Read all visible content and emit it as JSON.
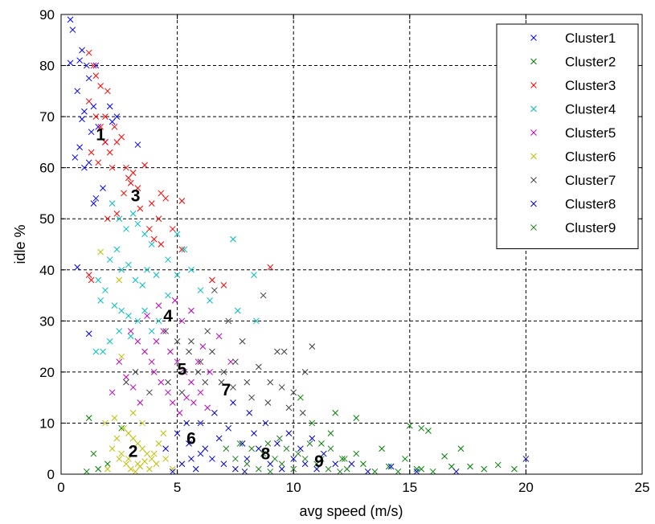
{
  "chart_data": {
    "type": "scatter",
    "title": "",
    "xlabel": "avg speed (m/s)",
    "ylabel": "idle %",
    "xlim": [
      0,
      25
    ],
    "ylim": [
      0,
      90
    ],
    "xticks": [
      0,
      5,
      10,
      15,
      20,
      25
    ],
    "yticks": [
      0,
      10,
      20,
      30,
      40,
      50,
      60,
      70,
      80,
      90
    ],
    "grid": true,
    "legend_position": "top-right",
    "marker": "x",
    "series": [
      {
        "name": "Cluster1",
        "color": "#0000FF",
        "points": [
          [
            0.4,
            89
          ],
          [
            0.5,
            87
          ],
          [
            0.4,
            80.5
          ],
          [
            0.8,
            81
          ],
          [
            0.9,
            83
          ],
          [
            1.1,
            80
          ],
          [
            1.2,
            77.5
          ],
          [
            1.0,
            71
          ],
          [
            0.7,
            75
          ],
          [
            0.9,
            69.5
          ],
          [
            1.4,
            72
          ],
          [
            1.3,
            67
          ],
          [
            1.6,
            68
          ],
          [
            0.8,
            64
          ],
          [
            0.6,
            62
          ],
          [
            1.0,
            60
          ],
          [
            1.2,
            61
          ],
          [
            2.1,
            72
          ],
          [
            2.4,
            70
          ],
          [
            3.3,
            64.5
          ],
          [
            1.5,
            54
          ],
          [
            1.4,
            53
          ],
          [
            1.8,
            56
          ],
          [
            0.7,
            40.5
          ],
          [
            1.2,
            27.5
          ],
          [
            1.5,
            80
          ],
          [
            1.9,
            65
          ],
          [
            2.2,
            69
          ]
        ]
      },
      {
        "name": "Cluster2",
        "color": "#008000",
        "points": [
          [
            15.0,
            9.5
          ],
          [
            15.5,
            9
          ],
          [
            15.8,
            8.5
          ],
          [
            16.5,
            3.5
          ],
          [
            17.2,
            5
          ],
          [
            17.6,
            1.5
          ],
          [
            18.2,
            1
          ],
          [
            19.5,
            1
          ],
          [
            14.8,
            3
          ],
          [
            14.1,
            1.5
          ],
          [
            15.3,
            1
          ],
          [
            16.0,
            0.5
          ],
          [
            13.8,
            5
          ],
          [
            12.7,
            4
          ],
          [
            12.1,
            3
          ],
          [
            11.6,
            8
          ],
          [
            10.3,
            15
          ],
          [
            11.2,
            6
          ],
          [
            13.0,
            2
          ],
          [
            12.3,
            1
          ],
          [
            13.5,
            0.5
          ],
          [
            16.8,
            1.5
          ],
          [
            18.8,
            1.8
          ],
          [
            15.5,
            1
          ],
          [
            14.5,
            0.5
          ],
          [
            1.2,
            11
          ],
          [
            1.4,
            4
          ],
          [
            2.0,
            2
          ],
          [
            2.6,
            9
          ],
          [
            1.6,
            1
          ],
          [
            1.1,
            0.5
          ],
          [
            11.8,
            12
          ],
          [
            12.7,
            11
          ],
          [
            10.8,
            10
          ]
        ]
      },
      {
        "name": "Cluster3",
        "color": "#FF0000",
        "points": [
          [
            1.2,
            82.5
          ],
          [
            1.4,
            80
          ],
          [
            1.5,
            78
          ],
          [
            1.2,
            73
          ],
          [
            1.5,
            70
          ],
          [
            1.7,
            68
          ],
          [
            1.9,
            65
          ],
          [
            2.1,
            63
          ],
          [
            1.3,
            63
          ],
          [
            1.6,
            61
          ],
          [
            2.2,
            60
          ],
          [
            2.4,
            65
          ],
          [
            2.6,
            66
          ],
          [
            2.0,
            75
          ],
          [
            1.7,
            76
          ],
          [
            1.9,
            70
          ],
          [
            2.3,
            68
          ],
          [
            2.8,
            60
          ],
          [
            2.9,
            58
          ],
          [
            3.1,
            59
          ],
          [
            3.3,
            56
          ],
          [
            3.6,
            60.5
          ],
          [
            3.4,
            52
          ],
          [
            3.9,
            53
          ],
          [
            4.3,
            55
          ],
          [
            4.5,
            54
          ],
          [
            5.2,
            53.5
          ],
          [
            3.8,
            48
          ],
          [
            4.0,
            46
          ],
          [
            4.3,
            45
          ],
          [
            4.2,
            50
          ],
          [
            4.8,
            48
          ],
          [
            5.2,
            44
          ],
          [
            1.2,
            39
          ],
          [
            1.3,
            38
          ],
          [
            2.0,
            50
          ],
          [
            2.4,
            51
          ],
          [
            6.5,
            38
          ],
          [
            7.0,
            37
          ],
          [
            9.0,
            40.5
          ],
          [
            2.7,
            55
          ],
          [
            3.0,
            57
          ]
        ]
      },
      {
        "name": "Cluster4",
        "color": "#00BFBF",
        "points": [
          [
            2.2,
            53
          ],
          [
            2.5,
            50
          ],
          [
            2.8,
            48
          ],
          [
            3.1,
            51
          ],
          [
            3.3,
            49
          ],
          [
            3.6,
            47
          ],
          [
            3.9,
            45
          ],
          [
            2.4,
            44
          ],
          [
            2.1,
            42
          ],
          [
            2.6,
            40
          ],
          [
            2.9,
            41
          ],
          [
            3.2,
            38
          ],
          [
            3.5,
            37
          ],
          [
            3.7,
            40
          ],
          [
            4.1,
            39
          ],
          [
            1.6,
            38
          ],
          [
            1.9,
            36
          ],
          [
            1.7,
            34
          ],
          [
            2.3,
            33
          ],
          [
            2.6,
            32
          ],
          [
            2.9,
            31
          ],
          [
            3.3,
            30
          ],
          [
            3.6,
            32
          ],
          [
            3.9,
            28
          ],
          [
            4.2,
            30
          ],
          [
            4.6,
            35
          ],
          [
            5.0,
            39
          ],
          [
            5.3,
            44
          ],
          [
            5.6,
            40
          ],
          [
            6.0,
            36
          ],
          [
            1.5,
            24
          ],
          [
            1.8,
            24
          ],
          [
            2.1,
            26
          ],
          [
            7.4,
            46
          ],
          [
            8.3,
            39
          ],
          [
            8.4,
            30
          ],
          [
            7.6,
            32
          ],
          [
            6.4,
            34
          ],
          [
            4.6,
            42
          ],
          [
            5.0,
            47
          ],
          [
            3.0,
            27
          ],
          [
            2.5,
            28
          ]
        ]
      },
      {
        "name": "Cluster5",
        "color": "#BF00BF",
        "points": [
          [
            3.0,
            28
          ],
          [
            3.3,
            26
          ],
          [
            3.6,
            24
          ],
          [
            3.9,
            22
          ],
          [
            4.1,
            26
          ],
          [
            4.4,
            28
          ],
          [
            4.7,
            24
          ],
          [
            5.0,
            22
          ],
          [
            5.3,
            20
          ],
          [
            5.6,
            18
          ],
          [
            5.9,
            22
          ],
          [
            6.1,
            25
          ],
          [
            6.4,
            20
          ],
          [
            4.0,
            20
          ],
          [
            4.3,
            18
          ],
          [
            4.6,
            16
          ],
          [
            4.8,
            14
          ],
          [
            5.1,
            12
          ],
          [
            5.4,
            15
          ],
          [
            5.7,
            14
          ],
          [
            6.0,
            16
          ],
          [
            6.3,
            13
          ],
          [
            2.5,
            22
          ],
          [
            2.8,
            19
          ],
          [
            3.1,
            17
          ],
          [
            3.4,
            14
          ],
          [
            2.2,
            16
          ],
          [
            5.2,
            30
          ],
          [
            5.6,
            32
          ],
          [
            4.9,
            34
          ],
          [
            6.8,
            27
          ],
          [
            7.3,
            22
          ],
          [
            3.7,
            31
          ],
          [
            4.2,
            33
          ]
        ]
      },
      {
        "name": "Cluster6",
        "color": "#BFBF00",
        "points": [
          [
            1.7,
            43.5
          ],
          [
            2.5,
            38
          ],
          [
            2.6,
            23
          ],
          [
            2.7,
            9
          ],
          [
            2.9,
            8
          ],
          [
            3.1,
            7
          ],
          [
            3.3,
            6
          ],
          [
            3.5,
            5
          ],
          [
            3.7,
            4
          ],
          [
            3.9,
            3
          ],
          [
            4.1,
            2
          ],
          [
            2.5,
            3
          ],
          [
            2.8,
            2
          ],
          [
            3.0,
            1
          ],
          [
            3.2,
            0.5
          ],
          [
            3.4,
            1.5
          ],
          [
            3.6,
            2.5
          ],
          [
            3.8,
            1
          ],
          [
            4.0,
            4
          ],
          [
            4.2,
            6
          ],
          [
            4.4,
            8
          ],
          [
            2.2,
            5
          ],
          [
            2.4,
            7
          ],
          [
            2.6,
            4
          ],
          [
            2.9,
            3
          ],
          [
            3.3,
            2
          ],
          [
            4.5,
            3
          ],
          [
            1.9,
            10
          ],
          [
            2.3,
            11
          ],
          [
            3.1,
            12
          ],
          [
            3.5,
            10
          ],
          [
            4.8,
            1
          ],
          [
            2.0,
            1
          ]
        ]
      },
      {
        "name": "Cluster7",
        "color": "#404040",
        "points": [
          [
            4.5,
            28
          ],
          [
            5.0,
            26
          ],
          [
            5.5,
            24
          ],
          [
            6.0,
            22
          ],
          [
            6.5,
            24
          ],
          [
            7.0,
            20
          ],
          [
            7.5,
            22
          ],
          [
            8.0,
            18
          ],
          [
            8.5,
            21
          ],
          [
            9.0,
            18
          ],
          [
            9.5,
            17
          ],
          [
            10.0,
            16
          ],
          [
            10.5,
            20
          ],
          [
            10.8,
            25
          ],
          [
            8.7,
            35
          ],
          [
            9.3,
            24
          ],
          [
            9.6,
            24
          ],
          [
            7.8,
            26
          ],
          [
            7.2,
            30
          ],
          [
            6.6,
            36
          ],
          [
            6.3,
            28
          ],
          [
            5.6,
            26
          ],
          [
            5.9,
            20
          ],
          [
            6.9,
            18
          ],
          [
            7.4,
            17
          ],
          [
            8.2,
            15
          ],
          [
            8.9,
            14
          ],
          [
            9.8,
            13
          ],
          [
            10.4,
            12
          ],
          [
            2.8,
            18
          ],
          [
            3.2,
            20
          ],
          [
            3.8,
            16
          ],
          [
            4.6,
            18
          ],
          [
            5.2,
            16
          ],
          [
            6.2,
            18
          ]
        ]
      },
      {
        "name": "Cluster8",
        "color": "#0000CC",
        "points": [
          [
            5.0,
            8
          ],
          [
            5.5,
            6
          ],
          [
            6.0,
            4
          ],
          [
            6.5,
            3
          ],
          [
            7.0,
            2
          ],
          [
            7.5,
            1
          ],
          [
            8.0,
            3
          ],
          [
            8.5,
            5
          ],
          [
            9.0,
            2
          ],
          [
            9.5,
            1
          ],
          [
            10.0,
            3
          ],
          [
            10.5,
            2
          ],
          [
            11.0,
            1
          ],
          [
            4.5,
            5
          ],
          [
            5.2,
            2
          ],
          [
            5.8,
            1
          ],
          [
            6.2,
            5
          ],
          [
            6.8,
            7
          ],
          [
            7.2,
            9
          ],
          [
            7.8,
            6
          ],
          [
            8.3,
            8
          ],
          [
            8.8,
            10
          ],
          [
            9.3,
            6
          ],
          [
            9.8,
            8
          ],
          [
            10.3,
            5
          ],
          [
            10.8,
            7
          ],
          [
            11.3,
            4
          ],
          [
            11.8,
            2
          ],
          [
            6.0,
            10
          ],
          [
            6.6,
            12
          ],
          [
            7.4,
            14
          ],
          [
            8.1,
            12
          ],
          [
            5.4,
            10
          ],
          [
            12.5,
            2
          ],
          [
            13.2,
            0.5
          ],
          [
            14.2,
            1.5
          ],
          [
            15.3,
            0.5
          ],
          [
            17.0,
            0.5
          ],
          [
            20.0,
            3
          ],
          [
            4.8,
            0.5
          ],
          [
            5.6,
            3
          ],
          [
            7.9,
            0.5
          ]
        ]
      },
      {
        "name": "Cluster9",
        "color": "#208020",
        "points": [
          [
            7.5,
            3
          ],
          [
            8.0,
            2
          ],
          [
            8.5,
            1
          ],
          [
            9.0,
            0.5
          ],
          [
            9.5,
            2
          ],
          [
            10.0,
            1
          ],
          [
            10.5,
            3
          ],
          [
            11.0,
            2
          ],
          [
            11.5,
            1
          ],
          [
            12.0,
            0.5
          ],
          [
            8.2,
            5
          ],
          [
            8.7,
            4
          ],
          [
            9.2,
            3
          ],
          [
            9.7,
            5
          ],
          [
            10.2,
            4
          ],
          [
            10.7,
            6
          ],
          [
            11.2,
            3
          ],
          [
            11.6,
            5
          ],
          [
            12.2,
            3
          ],
          [
            8.9,
            6
          ],
          [
            9.4,
            7
          ],
          [
            7.1,
            5
          ],
          [
            7.7,
            6
          ]
        ]
      }
    ],
    "annotations": [
      {
        "text": "1",
        "x": 1.7,
        "y": 66.5
      },
      {
        "text": "2",
        "x": 3.1,
        "y": 4.5
      },
      {
        "text": "3",
        "x": 3.2,
        "y": 54.5
      },
      {
        "text": "4",
        "x": 4.6,
        "y": 31
      },
      {
        "text": "5",
        "x": 5.2,
        "y": 20.5
      },
      {
        "text": "6",
        "x": 5.6,
        "y": 7
      },
      {
        "text": "7",
        "x": 7.1,
        "y": 16.5
      },
      {
        "text": "8",
        "x": 8.8,
        "y": 4
      },
      {
        "text": "9",
        "x": 11.1,
        "y": 2.5
      }
    ]
  }
}
